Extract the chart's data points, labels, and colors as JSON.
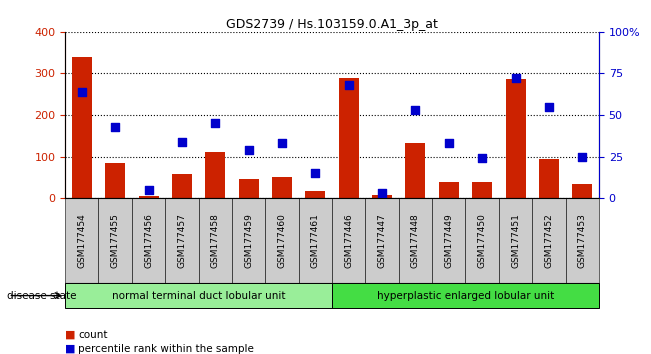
{
  "title": "GDS2739 / Hs.103159.0.A1_3p_at",
  "samples": [
    "GSM177454",
    "GSM177455",
    "GSM177456",
    "GSM177457",
    "GSM177458",
    "GSM177459",
    "GSM177460",
    "GSM177461",
    "GSM177446",
    "GSM177447",
    "GSM177448",
    "GSM177449",
    "GSM177450",
    "GSM177451",
    "GSM177452",
    "GSM177453"
  ],
  "counts": [
    340,
    85,
    5,
    58,
    110,
    47,
    52,
    18,
    290,
    8,
    133,
    38,
    40,
    287,
    95,
    35
  ],
  "percentiles": [
    64,
    43,
    5,
    34,
    45,
    29,
    33,
    15,
    68,
    3,
    53,
    33,
    24,
    72,
    55,
    25
  ],
  "group1_label": "normal terminal duct lobular unit",
  "group2_label": "hyperplastic enlarged lobular unit",
  "group1_count": 8,
  "group2_count": 8,
  "disease_state_label": "disease state",
  "bar_color": "#cc2200",
  "dot_color": "#0000cc",
  "group1_color": "#99ee99",
  "group2_color": "#44dd44",
  "tick_bg_color": "#cccccc",
  "ylim_left": [
    0,
    400
  ],
  "ylim_right": [
    0,
    100
  ],
  "yticks_left": [
    0,
    100,
    200,
    300,
    400
  ],
  "yticks_right": [
    0,
    25,
    50,
    75,
    100
  ],
  "yticklabels_right": [
    "0",
    "25",
    "50",
    "75",
    "100%"
  ],
  "legend_count_label": "count",
  "legend_pct_label": "percentile rank within the sample",
  "bar_width": 0.6
}
